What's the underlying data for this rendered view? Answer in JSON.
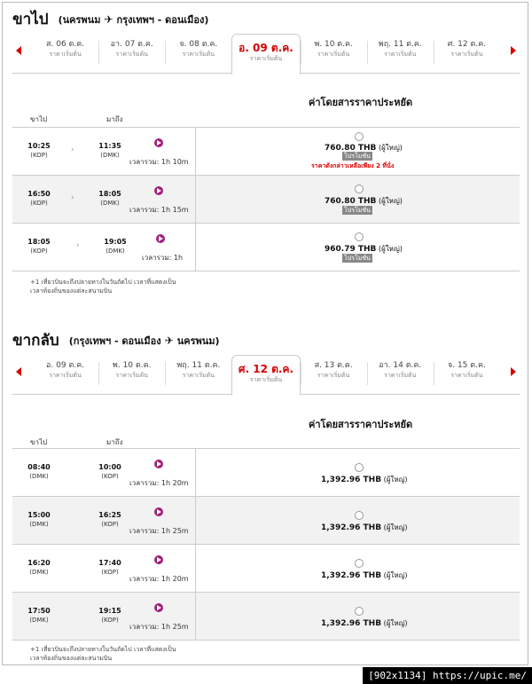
{
  "outbound": {
    "title": "ขาไป",
    "route_from": "นครพนม",
    "route_to": "กรุงเทพฯ - ดอนเมือง",
    "dates": [
      {
        "day": "ส. 06 ต.ค.",
        "price": "ราคาเริ่มต้น"
      },
      {
        "day": "อา. 07 ต.ค.",
        "price": "ราคาเริ่มต้น"
      },
      {
        "day": "จ. 08 ต.ค.",
        "price": "ราคาเริ่มต้น"
      },
      {
        "day": "อ. 09 ต.ค.",
        "price": "ราคาเริ่มต้น"
      },
      {
        "day": "พ. 10 ต.ค.",
        "price": "ราคาเริ่มต้น"
      },
      {
        "day": "พฤ. 11 ต.ค.",
        "price": "ราคาเริ่มต้น"
      },
      {
        "day": "ศ. 12 ต.ค.",
        "price": "ราคาเริ่มต้น"
      }
    ],
    "fare_header": "ค่าโดยสารราคาประหยัด",
    "col_depart": "ขาไป",
    "col_arrive": "มาถึง",
    "flights": [
      {
        "dep_time": "10:25",
        "dep_ap": "(KOP)",
        "arr_time": "11:35",
        "arr_ap": "(DMK)",
        "duration": "เวลารวม: 1h 10m",
        "price": "760.80 THB",
        "per": "(ผู้ใหญ่)",
        "promo": "โปรโมชั่น",
        "warning": "ราคาดังกล่าวเหลือเพียง 2 ที่นั่ง"
      },
      {
        "dep_time": "16:50",
        "dep_ap": "(KOP)",
        "arr_time": "18:05",
        "arr_ap": "(DMK)",
        "duration": "เวลารวม: 1h 15m",
        "price": "760.80 THB",
        "per": "(ผู้ใหญ่)",
        "promo": "โปรโมชั่น",
        "warning": ""
      },
      {
        "dep_time": "18:05",
        "dep_ap": "(KOP)",
        "arr_time": "19:05",
        "arr_ap": "(DMK)",
        "duration": "เวลารวม: 1h",
        "price": "960.79 THB",
        "per": "(ผู้ใหญ่)",
        "promo": "โปรโมชั่น",
        "warning": ""
      }
    ],
    "note_line1": "+1 เที่ยวบินจะถึงปลายทางในวันถัดไป เวลาที่แสดงเป็น",
    "note_line2": "เวลาท้องถิ่นของแต่ละสนามบิน"
  },
  "return": {
    "title": "ขากลับ",
    "route_from": "กรุงเทพฯ - ดอนเมือง",
    "route_to": "นครพนม",
    "dates": [
      {
        "day": "อ. 09 ต.ค.",
        "price": "ราคาเริ่มต้น"
      },
      {
        "day": "พ. 10 ต.ค.",
        "price": "ราคาเริ่มต้น"
      },
      {
        "day": "พฤ. 11 ต.ค.",
        "price": "ราคาเริ่มต้น"
      },
      {
        "day": "ศ. 12 ต.ค.",
        "price": "ราคาเริ่มต้น"
      },
      {
        "day": "ส. 13 ต.ค.",
        "price": "ราคาเริ่มต้น"
      },
      {
        "day": "อา. 14 ต.ค.",
        "price": "ราคาเริ่มต้น"
      },
      {
        "day": "จ. 15 ต.ค.",
        "price": "ราคาเริ่มต้น"
      }
    ],
    "fare_header": "ค่าโดยสารราคาประหยัด",
    "col_depart": "ขาไป",
    "col_arrive": "มาถึง",
    "flights": [
      {
        "dep_time": "08:40",
        "dep_ap": "(DMK)",
        "arr_time": "10:00",
        "arr_ap": "(KOP)",
        "duration": "เวลารวม: 1h 20m",
        "price": "1,392.96 THB",
        "per": "(ผู้ใหญ่)"
      },
      {
        "dep_time": "15:00",
        "dep_ap": "(DMK)",
        "arr_time": "16:25",
        "arr_ap": "(KOP)",
        "duration": "เวลารวม: 1h 25m",
        "price": "1,392.96 THB",
        "per": "(ผู้ใหญ่)"
      },
      {
        "dep_time": "16:20",
        "dep_ap": "(DMK)",
        "arr_time": "17:40",
        "arr_ap": "(KOP)",
        "duration": "เวลารวม: 1h 20m",
        "price": "1,392.96 THB",
        "per": "(ผู้ใหญ่)"
      },
      {
        "dep_time": "17:50",
        "dep_ap": "(DMK)",
        "arr_time": "19:15",
        "arr_ap": "(KOP)",
        "duration": "เวลารวม: 1h 25m",
        "price": "1,392.96 THB",
        "per": "(ผู้ใหญ่)"
      }
    ],
    "note_line1": "+1 เที่ยวบินจะถึงปลายทางในวันถัดไป เวลาที่แสดงเป็น",
    "note_line2": "เวลาท้องถิ่นของแต่ละสนามบิน"
  },
  "plane_glyph": "✈",
  "selected_color": "#d40000",
  "airline_color": "#a0207c",
  "watermark": "[902x1134] https://upic.me/"
}
